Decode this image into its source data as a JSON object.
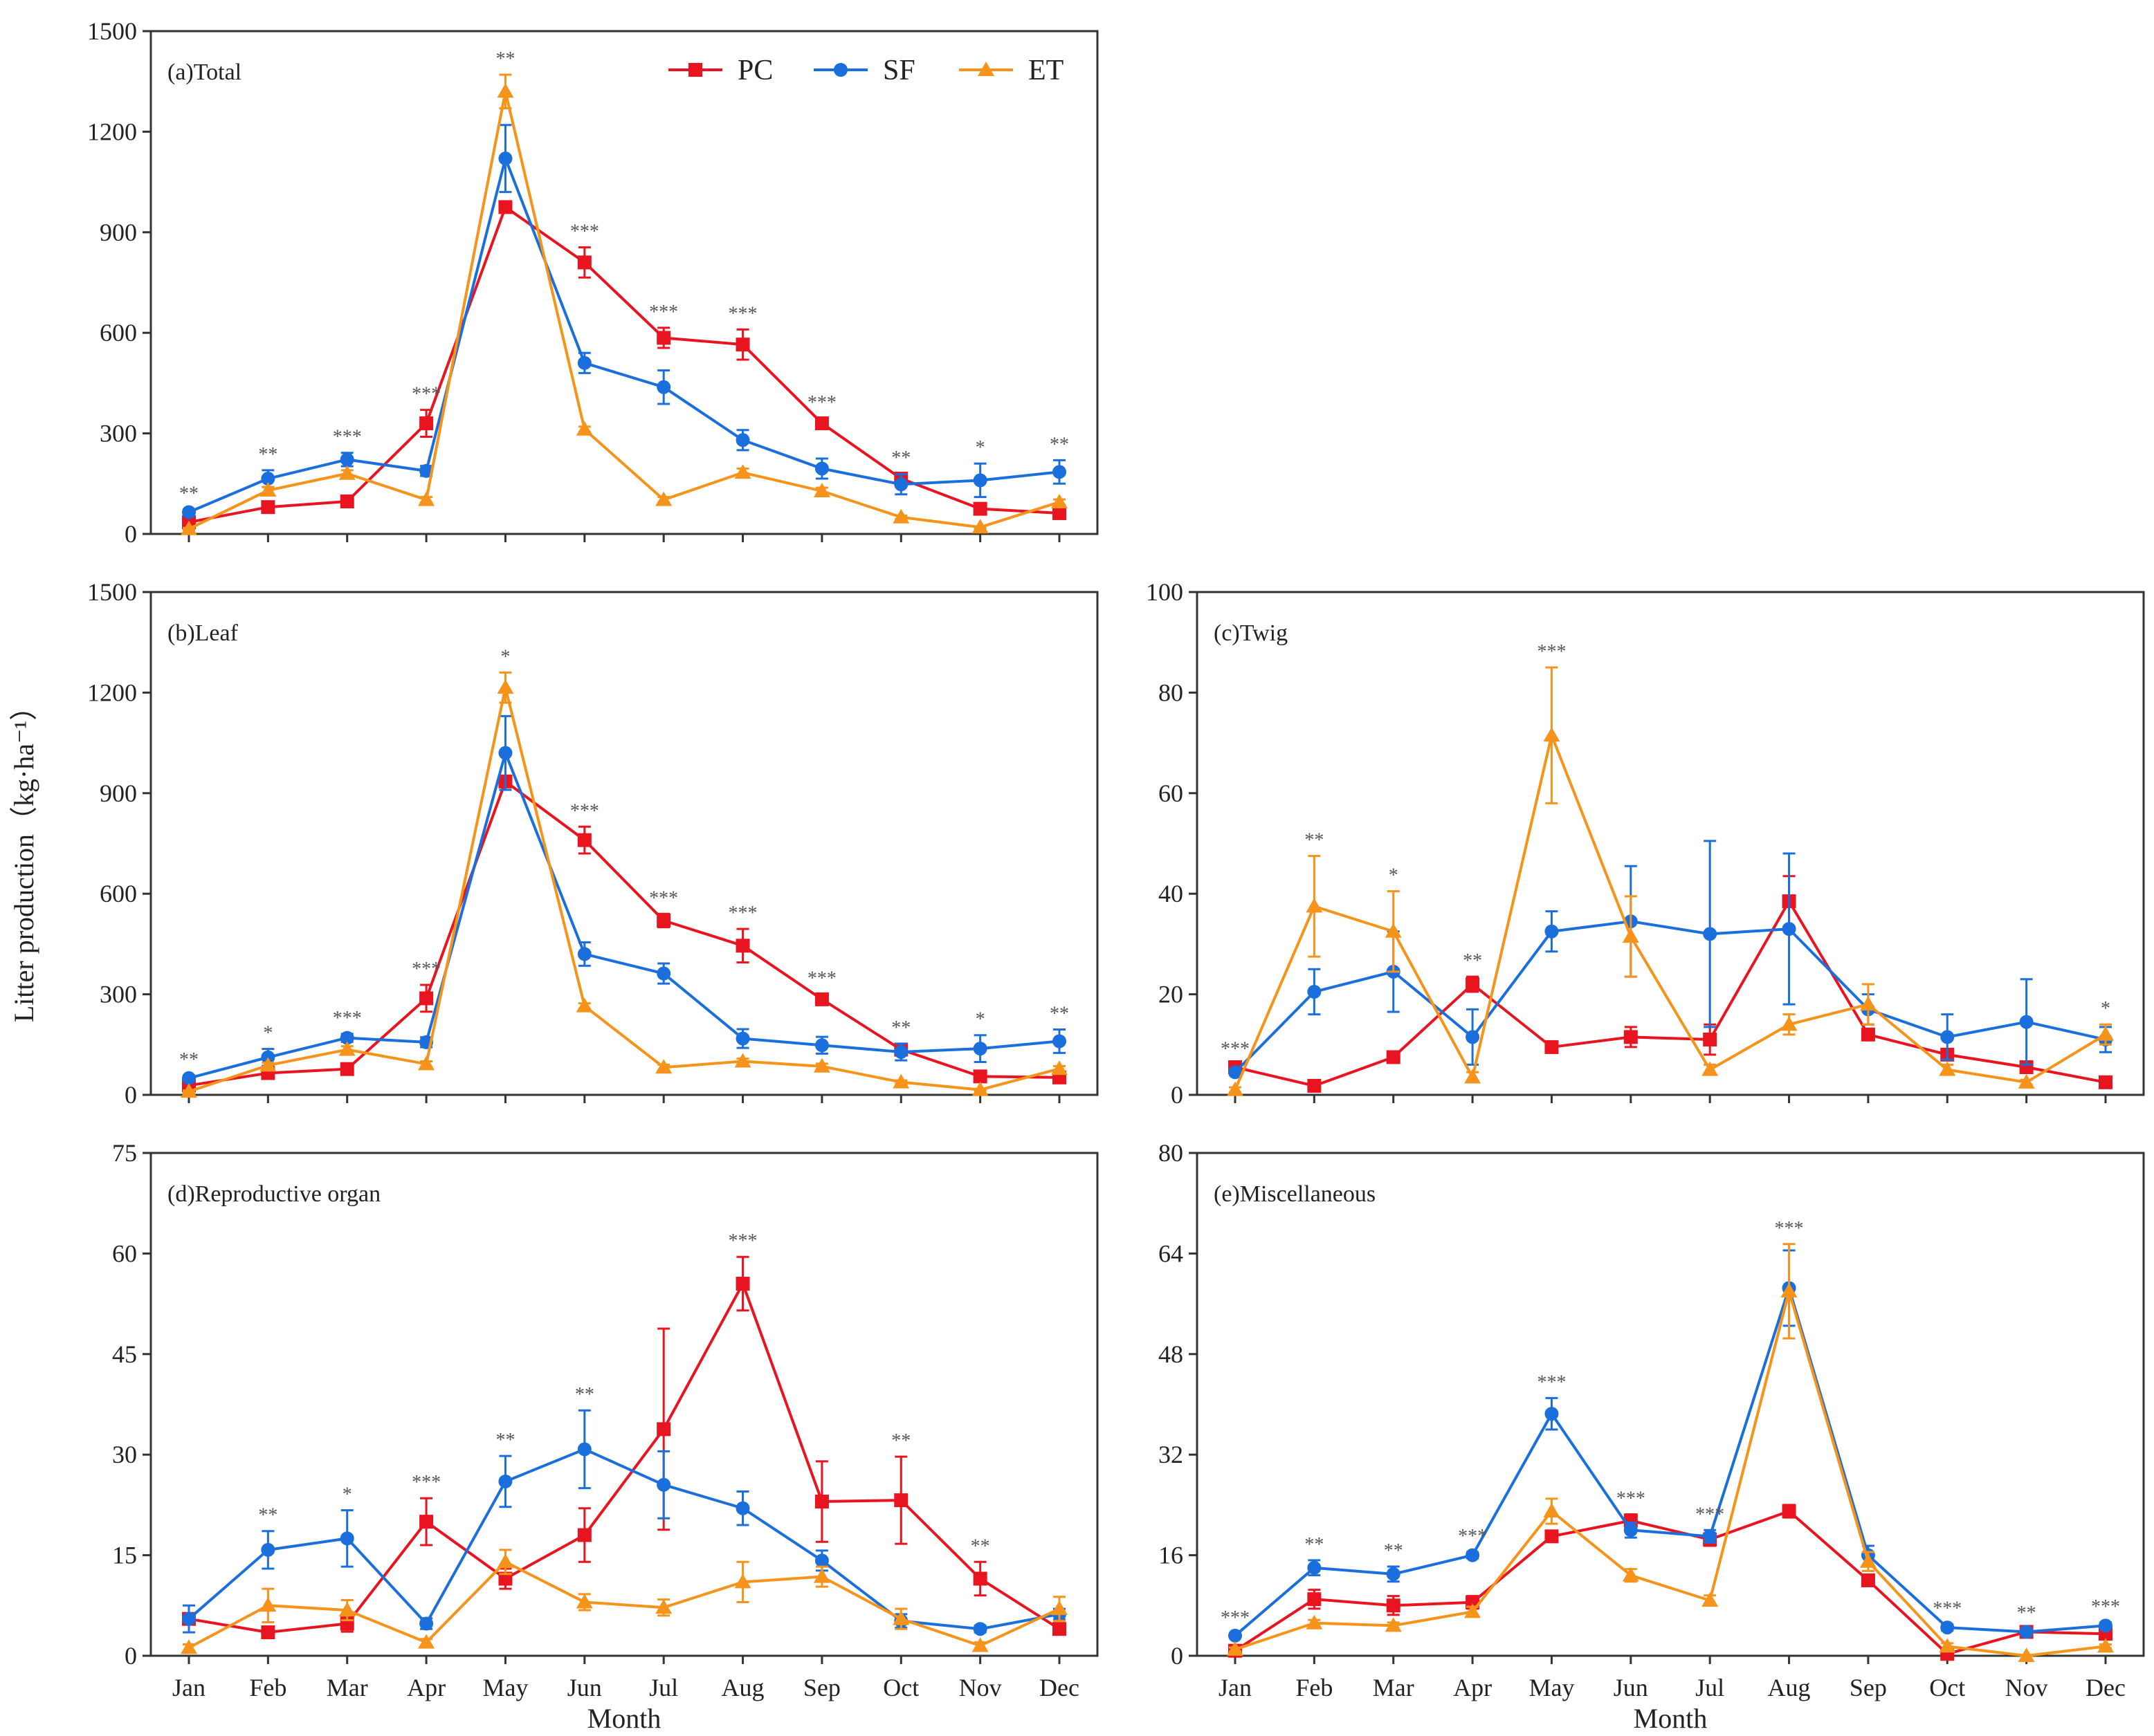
{
  "y_axis_title": "Litter production（kg·ha⁻¹）",
  "x_axis_title": "Month",
  "legend": [
    {
      "name": "PC",
      "color": "#e8141f",
      "marker": "square"
    },
    {
      "name": "SF",
      "color": "#1a6fdc",
      "marker": "circle"
    },
    {
      "name": "ET",
      "color": "#f5931b",
      "marker": "triangle"
    }
  ],
  "chart_data": [
    {
      "id": "a",
      "type": "line",
      "title": "(a)Total",
      "categories": [
        "Jan",
        "Feb",
        "Mar",
        "Apr",
        "May",
        "Jun",
        "Jul",
        "Aug",
        "Sep",
        "Oct",
        "Nov",
        "Dec"
      ],
      "ylim": [
        0,
        1500
      ],
      "yticks": [
        0,
        300,
        600,
        900,
        1200,
        1500
      ],
      "ytick_labels": [
        "0",
        "300",
        "600",
        "900",
        "1200",
        "1500"
      ],
      "show_xticklabels": false,
      "show_xlabel": false,
      "legend_position": "top-right",
      "significance": [
        "**",
        "**",
        "***",
        "***",
        "**",
        "***",
        "***",
        "***",
        "***",
        "**",
        "*",
        "**"
      ],
      "series": [
        {
          "name": "PC",
          "values": [
            35,
            80,
            97,
            330,
            975,
            810,
            585,
            565,
            330,
            165,
            75,
            62
          ],
          "errors": [
            5,
            8,
            8,
            40,
            15,
            45,
            30,
            45,
            15,
            15,
            5,
            5
          ]
        },
        {
          "name": "SF",
          "values": [
            65,
            165,
            222,
            188,
            1120,
            510,
            438,
            280,
            195,
            148,
            160,
            185
          ],
          "errors": [
            8,
            25,
            20,
            15,
            100,
            30,
            50,
            30,
            30,
            30,
            50,
            35
          ]
        },
        {
          "name": "ET",
          "values": [
            15,
            130,
            180,
            102,
            1320,
            312,
            102,
            183,
            128,
            50,
            20,
            95
          ],
          "errors": [
            3,
            10,
            10,
            8,
            50,
            8,
            8,
            12,
            10,
            5,
            3,
            8
          ]
        }
      ]
    },
    {
      "id": "b",
      "type": "line",
      "title": "(b)Leaf",
      "categories": [
        "Jan",
        "Feb",
        "Mar",
        "Apr",
        "May",
        "Jun",
        "Jul",
        "Aug",
        "Sep",
        "Oct",
        "Nov",
        "Dec"
      ],
      "ylim": [
        0,
        1500
      ],
      "yticks": [
        0,
        300,
        600,
        900,
        1200,
        1500
      ],
      "ytick_labels": [
        "0",
        "300",
        "600",
        "900",
        "1200",
        "1500"
      ],
      "show_xticklabels": false,
      "show_xlabel": false,
      "significance": [
        "**",
        "*",
        "***",
        "***",
        "*",
        "***",
        "***",
        "***",
        "***",
        "**",
        "*",
        "**"
      ],
      "series": [
        {
          "name": "PC",
          "values": [
            28,
            65,
            77,
            288,
            935,
            760,
            520,
            445,
            285,
            135,
            55,
            52
          ],
          "errors": [
            5,
            8,
            8,
            40,
            15,
            40,
            20,
            50,
            15,
            15,
            5,
            5
          ]
        },
        {
          "name": "SF",
          "values": [
            50,
            112,
            170,
            157,
            1020,
            420,
            362,
            168,
            148,
            128,
            138,
            160
          ],
          "errors": [
            8,
            25,
            12,
            15,
            110,
            35,
            30,
            28,
            25,
            25,
            40,
            35
          ]
        },
        {
          "name": "ET",
          "values": [
            10,
            88,
            135,
            92,
            1215,
            265,
            82,
            100,
            85,
            38,
            15,
            78
          ],
          "errors": [
            3,
            8,
            10,
            8,
            45,
            8,
            8,
            8,
            8,
            5,
            3,
            8
          ]
        }
      ]
    },
    {
      "id": "c",
      "type": "line",
      "title": "(c)Twig",
      "categories": [
        "Jan",
        "Feb",
        "Mar",
        "Apr",
        "May",
        "Jun",
        "Jul",
        "Aug",
        "Sep",
        "Oct",
        "Nov",
        "Dec"
      ],
      "ylim": [
        0,
        100
      ],
      "yticks": [
        0,
        20,
        40,
        60,
        80,
        100
      ],
      "ytick_labels": [
        "0",
        "20",
        "40",
        "60",
        "80",
        "100"
      ],
      "show_xticklabels": false,
      "show_xlabel": false,
      "significance": [
        "***",
        "**",
        "*",
        "**",
        "***",
        "",
        "",
        "",
        "",
        "",
        "",
        "*"
      ],
      "series": [
        {
          "name": "PC",
          "values": [
            5.5,
            1.8,
            7.5,
            22,
            9.5,
            11.5,
            11,
            38.5,
            12,
            8,
            5.5,
            2.5
          ],
          "errors": [
            0.5,
            0.5,
            0.8,
            1.5,
            0.8,
            2,
            3,
            5,
            1,
            1,
            0.5,
            0.5
          ]
        },
        {
          "name": "SF",
          "values": [
            4.5,
            20.5,
            24.5,
            11.5,
            32.5,
            34.5,
            32,
            33,
            17,
            11.5,
            14.5,
            11
          ],
          "errors": [
            0.5,
            4.5,
            8,
            5.5,
            4,
            11,
            18.5,
            15,
            3,
            4.5,
            8.5,
            2.5
          ]
        },
        {
          "name": "ET",
          "values": [
            1,
            37.5,
            32.5,
            3.5,
            71.5,
            31.5,
            5,
            14,
            18,
            5,
            2.5,
            12
          ],
          "errors": [
            0.5,
            10,
            8,
            1,
            13.5,
            8,
            1,
            2,
            4,
            1,
            0.5,
            2
          ]
        }
      ]
    },
    {
      "id": "d",
      "type": "line",
      "title": "(d)Reproductive organ",
      "categories": [
        "Jan",
        "Feb",
        "Mar",
        "Apr",
        "May",
        "Jun",
        "Jul",
        "Aug",
        "Sep",
        "Oct",
        "Nov",
        "Dec"
      ],
      "ylim": [
        0,
        75
      ],
      "yticks": [
        0,
        15,
        30,
        45,
        60,
        75
      ],
      "ytick_labels": [
        "0",
        "15",
        "30",
        "45",
        "60",
        "75"
      ],
      "show_xticklabels": true,
      "show_xlabel": true,
      "significance": [
        "",
        "**",
        "*",
        "***",
        "**",
        "**",
        "",
        "***",
        "",
        "**",
        "**",
        ""
      ],
      "series": [
        {
          "name": "PC",
          "values": [
            5.5,
            3.5,
            4.8,
            20,
            11.5,
            18,
            33.8,
            55.5,
            23,
            23.2,
            11.5,
            4
          ],
          "errors": [
            0.8,
            0.8,
            1.2,
            3.5,
            1.5,
            4,
            15,
            4,
            6,
            6.5,
            2.5,
            0.5
          ]
        },
        {
          "name": "SF",
          "values": [
            5.5,
            15.8,
            17.5,
            4.8,
            26,
            30.8,
            25.5,
            22,
            14.2,
            5.2,
            4,
            6.2
          ],
          "errors": [
            2,
            2.8,
            4.2,
            0.8,
            3.8,
            5.8,
            5,
            2.5,
            1.5,
            1,
            0.5,
            0.8
          ]
        },
        {
          "name": "ET",
          "values": [
            1.2,
            7.5,
            6.8,
            2,
            14,
            8,
            7.2,
            11,
            11.8,
            5.5,
            1.5,
            7
          ],
          "errors": [
            0.5,
            2.5,
            1.5,
            0.5,
            1.8,
            1.2,
            1.2,
            3,
            1.5,
            1.5,
            0.5,
            1.8
          ]
        }
      ]
    },
    {
      "id": "e",
      "type": "line",
      "title": "(e)Miscellaneous",
      "categories": [
        "Jan",
        "Feb",
        "Mar",
        "Apr",
        "May",
        "Jun",
        "Jul",
        "Aug",
        "Sep",
        "Oct",
        "Nov",
        "Dec"
      ],
      "ylim": [
        0,
        80
      ],
      "yticks": [
        0,
        16,
        32,
        48,
        64,
        80
      ],
      "ytick_labels": [
        "0",
        "16",
        "32",
        "48",
        "64",
        "80"
      ],
      "show_xticklabels": true,
      "show_xlabel": true,
      "significance": [
        "***",
        "**",
        "**",
        "***",
        "***",
        "***",
        "***",
        "***",
        "",
        "***",
        "**",
        "***"
      ],
      "series": [
        {
          "name": "PC",
          "values": [
            0.8,
            9,
            8,
            8.5,
            19,
            21.5,
            18.5,
            23,
            12,
            0.3,
            3.8,
            3.5
          ],
          "errors": [
            0.3,
            1.5,
            1.5,
            1,
            0.8,
            1,
            1,
            1,
            0.8,
            0.2,
            0.5,
            0.5
          ]
        },
        {
          "name": "SF",
          "values": [
            3.2,
            14,
            13,
            16,
            38.5,
            20,
            19,
            58.5,
            16,
            4.5,
            3.8,
            4.8
          ],
          "errors": [
            0.3,
            1.2,
            1.2,
            0.5,
            2.5,
            1.2,
            1,
            6,
            1.5,
            0.5,
            0.5,
            0.5
          ]
        },
        {
          "name": "ET",
          "values": [
            1,
            5.2,
            4.8,
            7,
            23,
            12.8,
            8.8,
            58,
            15,
            1.5,
            0,
            1.5
          ],
          "errors": [
            0.3,
            0.5,
            0.5,
            0.8,
            2,
            1,
            0.8,
            7.5,
            1.5,
            0.5,
            0.1,
            0.3
          ]
        }
      ]
    }
  ]
}
